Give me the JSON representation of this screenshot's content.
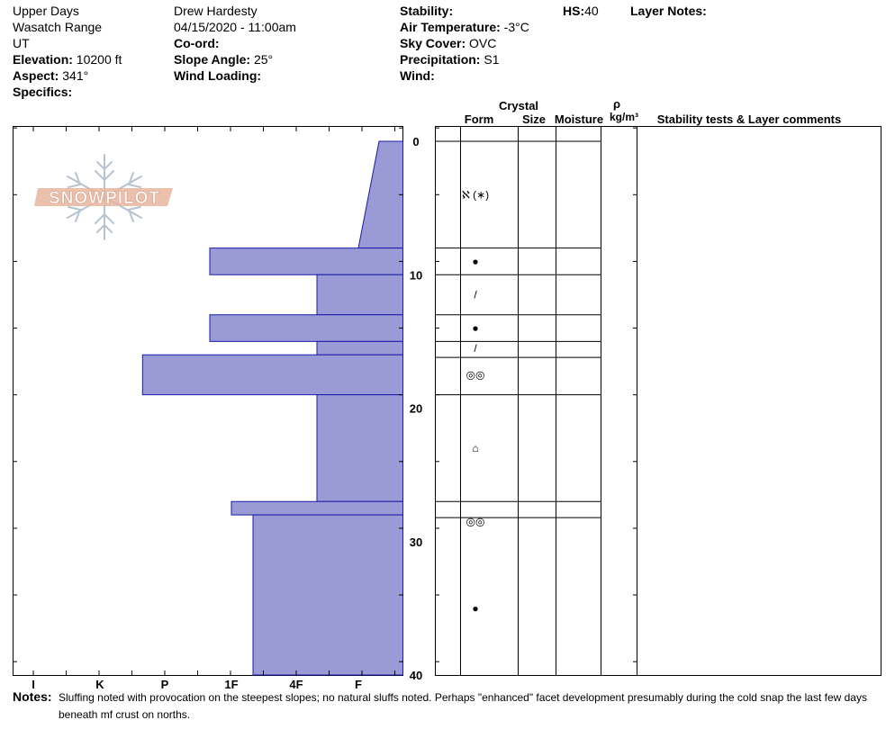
{
  "header": {
    "location": "Upper Days",
    "range": "Wasatch Range",
    "state": "UT",
    "elevation_label": "Elevation:",
    "elevation": "10200 ft",
    "aspect_label": "Aspect:",
    "aspect": "341°",
    "specifics_label": "Specifics:",
    "observer": "Drew Hardesty",
    "datetime": "04/15/2020 - 11:00am",
    "coord_label": "Co-ord:",
    "slope_label": "Slope Angle:",
    "slope": "25°",
    "wind_loading_label": "Wind Loading:",
    "stability_label": "Stability:",
    "air_temp_label": "Air Temperature:",
    "air_temp": "-3°C",
    "sky_label": "Sky Cover:",
    "sky": "OVC",
    "precip_label": "Precipitation:",
    "precip": "S1",
    "wind_label": "Wind:",
    "hs_label": "HS:",
    "hs": "40",
    "layer_notes_label": "Layer Notes:"
  },
  "columns": {
    "crystal": "Crystal",
    "form": "Form",
    "size": "Size",
    "moisture": "Moisture",
    "rho": "ρ",
    "density_unit": "kg/m³",
    "stability": "Stability tests & Layer comments"
  },
  "logo_text": "SNOWPILOT",
  "notes_label": "Notes:",
  "notes_line1": "Sluffing noted with provocation on the steepest slopes; no natural sluffs noted.  Perhaps \"enhanced\" facet development presumably during the cold snap the last few days",
  "notes_line2": "beneath mf crust on norths.",
  "colors": {
    "bar_fill": "#9a9ad6",
    "bar_stroke": "#1a1aa8",
    "logo": "#e8b59f"
  },
  "chart_data": {
    "type": "bar",
    "orientation": "horizontal",
    "x_categories": [
      "I",
      "K",
      "P",
      "1F",
      "4F",
      "F"
    ],
    "x_direction": "reversed (I at left, F at right)",
    "y_ticks": [
      0,
      10,
      20,
      30,
      40
    ],
    "ylim": [
      0,
      40
    ],
    "y_direction": "depth from top",
    "hand_hardness_profile": [
      {
        "top": 0,
        "bottom": 8,
        "hardness_top": "F-",
        "hardness_bottom": "F"
      },
      {
        "top": 8,
        "bottom": 10,
        "hardness": "1F+"
      },
      {
        "top": 10,
        "bottom": 13,
        "hardness": "4F-"
      },
      {
        "top": 13,
        "bottom": 15,
        "hardness": "1F+"
      },
      {
        "top": 15,
        "bottom": 16,
        "hardness": "4F-"
      },
      {
        "top": 16,
        "bottom": 19,
        "hardness": "P+"
      },
      {
        "top": 19,
        "bottom": 27,
        "hardness": "4F-"
      },
      {
        "top": 27,
        "bottom": 28,
        "hardness": "1F"
      },
      {
        "top": 28,
        "bottom": 40,
        "hardness": "1F-"
      }
    ],
    "layer_boundaries": [
      0,
      8,
      10,
      13,
      15,
      16.2,
      19,
      27,
      28.2
    ],
    "crystal_forms": [
      {
        "depth": 4,
        "symbol": "ℵ (∗)",
        "name": "decomposing fragments / new snow"
      },
      {
        "depth": 9,
        "symbol": "●",
        "name": "melt-freeze"
      },
      {
        "depth": 11.5,
        "symbol": "/",
        "name": "ice crust"
      },
      {
        "depth": 14,
        "symbol": "●",
        "name": "melt-freeze"
      },
      {
        "depth": 15.5,
        "symbol": "/",
        "name": "ice crust"
      },
      {
        "depth": 17.5,
        "symbol": "◎◎",
        "name": "melt-freeze clusters"
      },
      {
        "depth": 23,
        "symbol": "⌂",
        "name": "faceted crystals"
      },
      {
        "depth": 28.5,
        "symbol": "◎◎",
        "name": "melt-freeze clusters"
      },
      {
        "depth": 35,
        "symbol": "●",
        "name": "rounded grains"
      }
    ]
  }
}
